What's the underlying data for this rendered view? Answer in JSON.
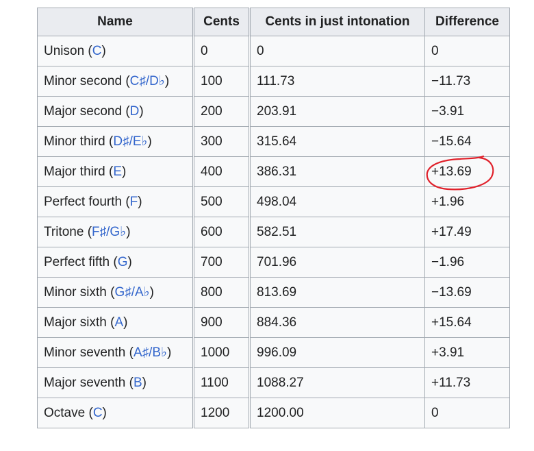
{
  "table": {
    "headers": [
      "Name",
      "Cents",
      "Cents in just intonation",
      "Difference"
    ],
    "rows": [
      {
        "name": "Unison",
        "notes": "C",
        "cents": "0",
        "just": "0",
        "diff": "0"
      },
      {
        "name": "Minor second",
        "notes": "C♯/D♭",
        "cents": "100",
        "just": "111.73",
        "diff": "−11.73"
      },
      {
        "name": "Major second",
        "notes": "D",
        "cents": "200",
        "just": "203.91",
        "diff": "−3.91"
      },
      {
        "name": "Minor third",
        "notes": "D♯/E♭",
        "cents": "300",
        "just": "315.64",
        "diff": "−15.64"
      },
      {
        "name": "Major third",
        "notes": "E",
        "cents": "400",
        "just": "386.31",
        "diff": "+13.69"
      },
      {
        "name": "Perfect fourth",
        "notes": "F",
        "cents": "500",
        "just": "498.04",
        "diff": "+1.96"
      },
      {
        "name": "Tritone",
        "notes": "F♯/G♭",
        "cents": "600",
        "just": "582.51",
        "diff": "+17.49"
      },
      {
        "name": "Perfect fifth",
        "notes": "G",
        "cents": "700",
        "just": "701.96",
        "diff": "−1.96"
      },
      {
        "name": "Minor sixth",
        "notes": "G♯/A♭",
        "cents": "800",
        "just": "813.69",
        "diff": "−13.69"
      },
      {
        "name": "Major sixth",
        "notes": "A",
        "cents": "900",
        "just": "884.36",
        "diff": "+15.64"
      },
      {
        "name": "Minor seventh",
        "notes": "A♯/B♭",
        "cents": "1000",
        "just": "996.09",
        "diff": "+3.91"
      },
      {
        "name": "Major seventh",
        "notes": "B",
        "cents": "1100",
        "just": "1088.27",
        "diff": "+11.73"
      },
      {
        "name": "Octave",
        "notes": "C",
        "cents": "1200",
        "just": "1200.00",
        "diff": "0"
      }
    ]
  },
  "annotation": {
    "color": "#e0202a"
  }
}
